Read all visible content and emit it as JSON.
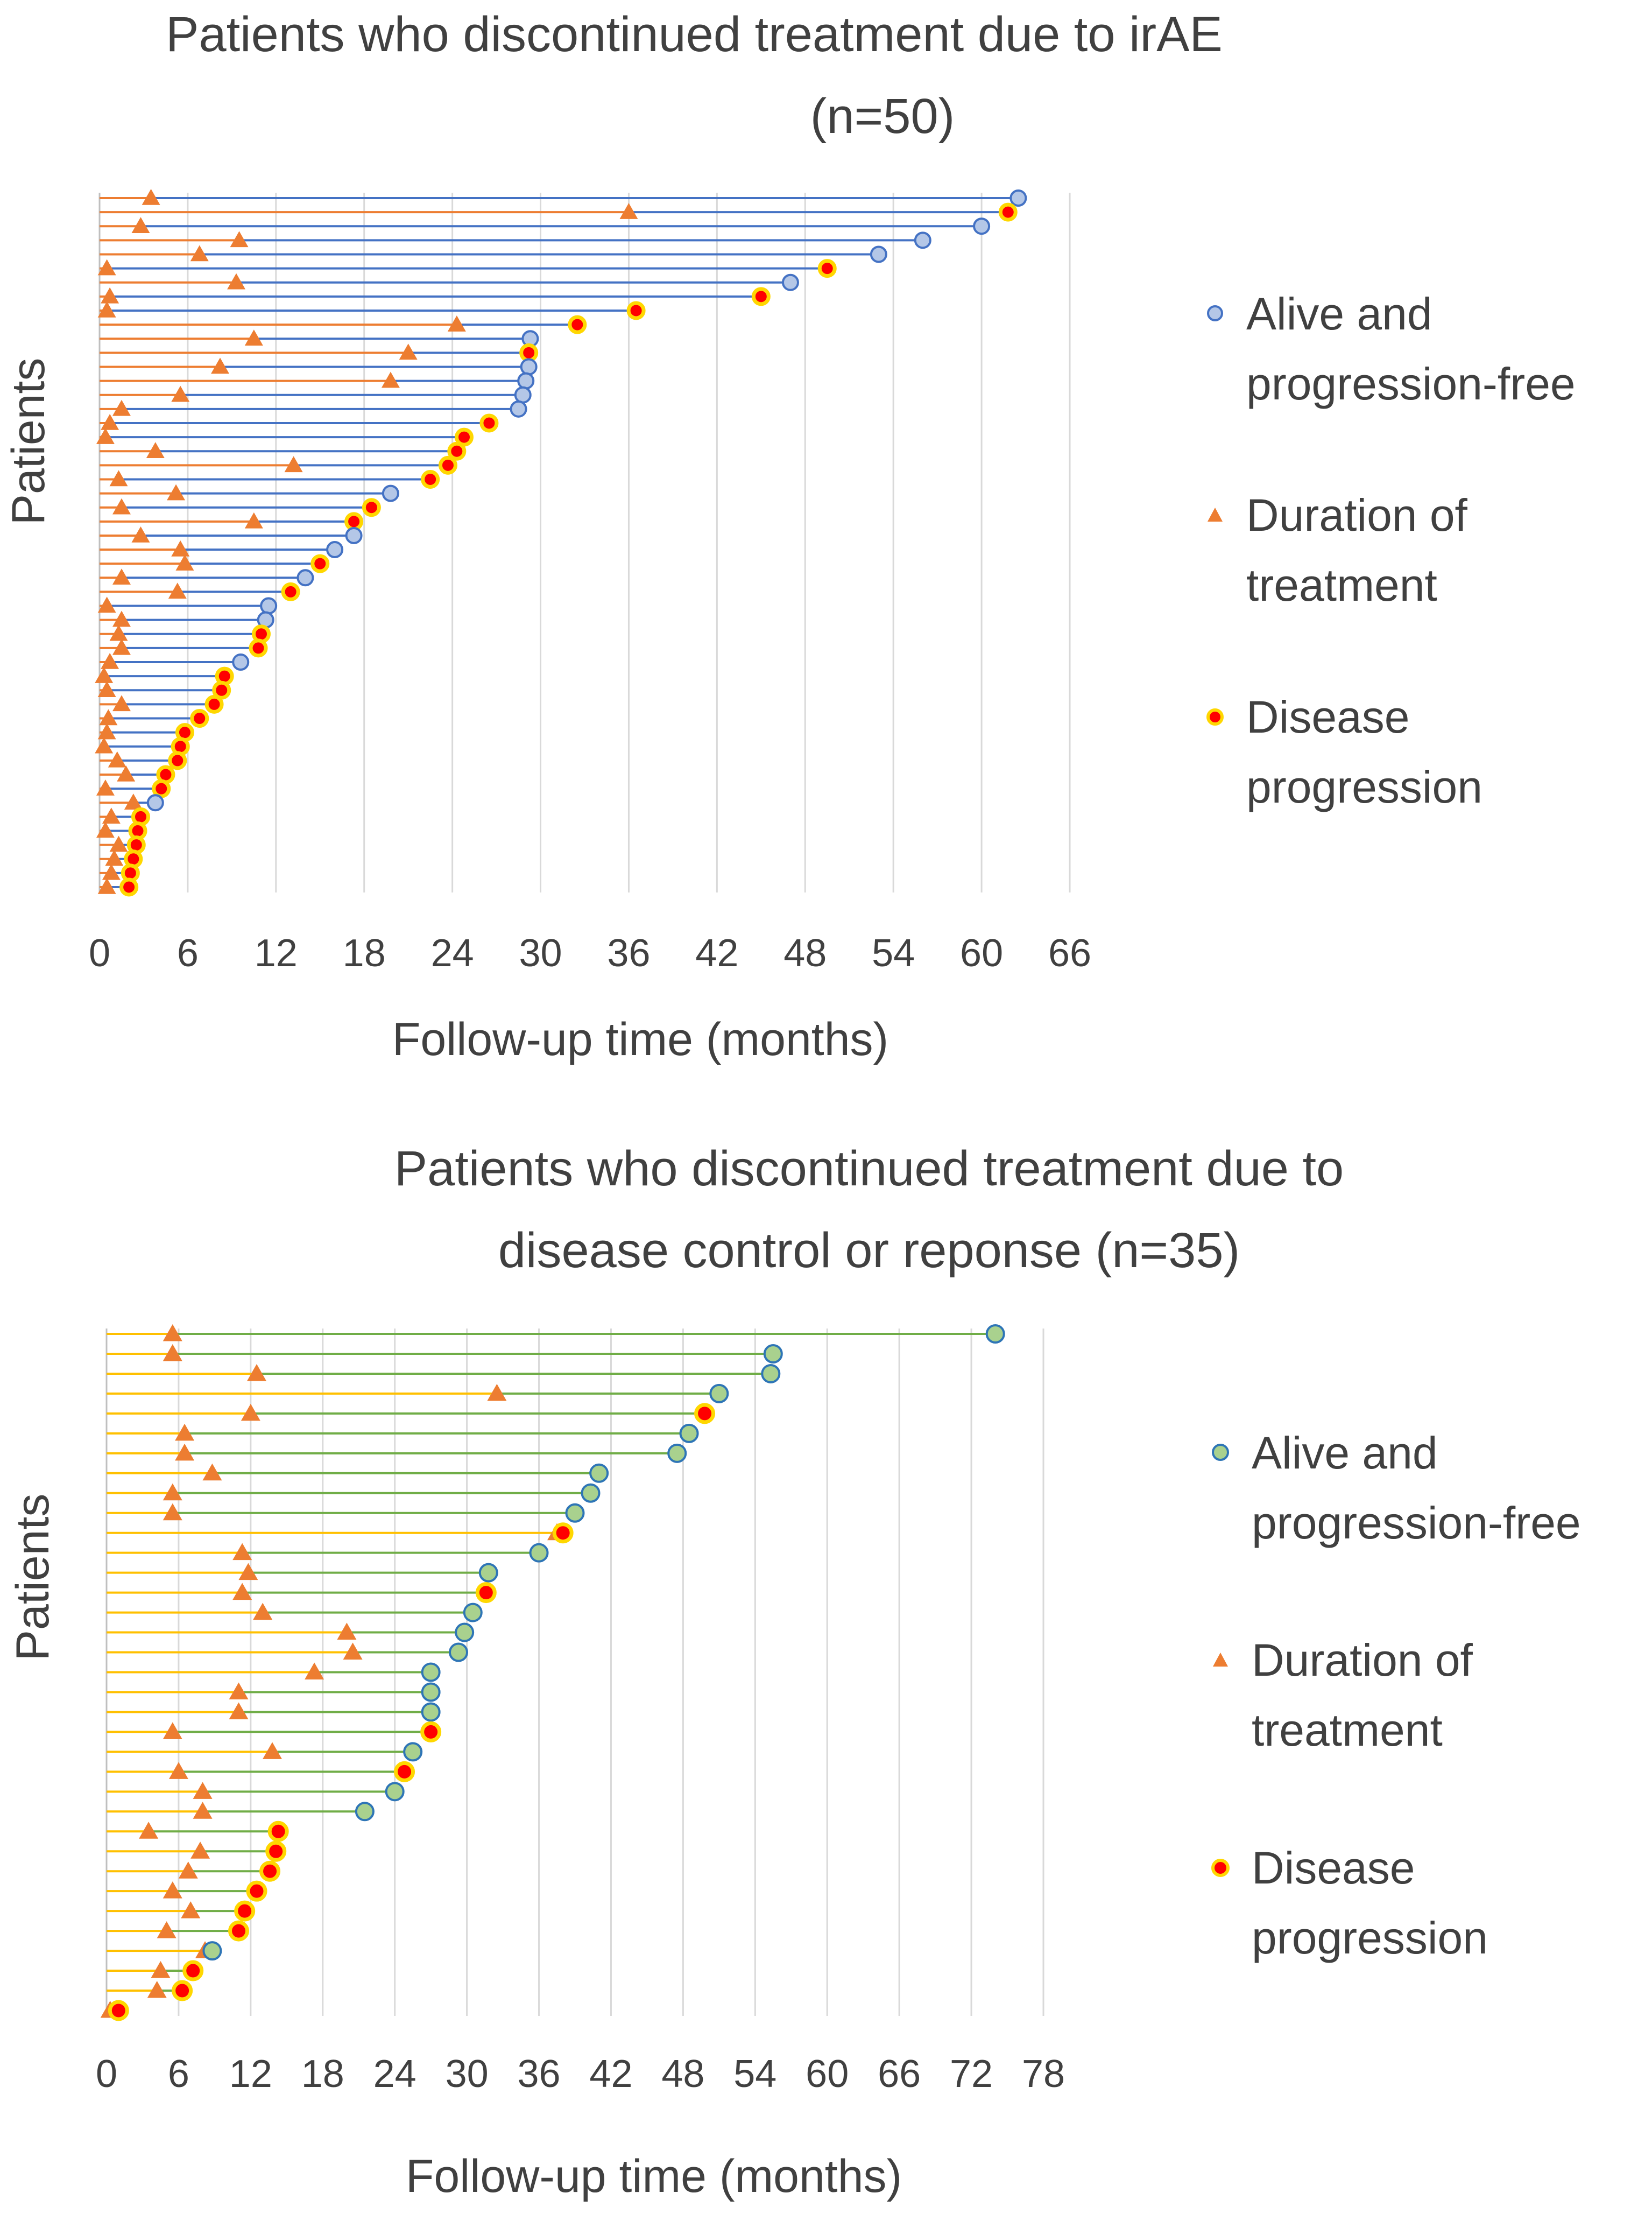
{
  "chart_data": [
    {
      "type": "swimmer",
      "title_lines": [
        "Patients who discontinued treatment due to irAE",
        "(n=50)"
      ],
      "xlabel": "Follow-up time (months)",
      "ylabel": "Patients",
      "xlim": [
        0,
        66
      ],
      "xticks": [
        "0",
        "6",
        "12",
        "18",
        "24",
        "30",
        "36",
        "42",
        "48",
        "54",
        "60",
        "66"
      ],
      "colors": {
        "follow_up_line": "#4472C4",
        "treatment_line": "#ED7D31",
        "alive_marker_fill": "#B4C7E7",
        "alive_marker_stroke": "#4472C4",
        "treatment_marker": "#ED7D31",
        "progression_fill": "#FF0000",
        "progression_stroke": "#FFD700"
      },
      "legend": [
        {
          "key": "alive",
          "lines": [
            "Alive and",
            "progression-free"
          ]
        },
        {
          "key": "treatment",
          "lines": [
            "Duration of",
            "treatment"
          ]
        },
        {
          "key": "progression",
          "lines": [
            "Disease",
            "progression"
          ]
        }
      ],
      "patients": [
        {
          "treatment": 3.5,
          "followup": 62.5,
          "outcome": "alive"
        },
        {
          "treatment": 36,
          "followup": 61.8,
          "outcome": "progression"
        },
        {
          "treatment": 2.8,
          "followup": 60,
          "outcome": "alive"
        },
        {
          "treatment": 9.5,
          "followup": 56,
          "outcome": "alive"
        },
        {
          "treatment": 6.8,
          "followup": 53,
          "outcome": "alive"
        },
        {
          "treatment": 0.5,
          "followup": 49.5,
          "outcome": "progression"
        },
        {
          "treatment": 9.3,
          "followup": 47,
          "outcome": "alive"
        },
        {
          "treatment": 0.7,
          "followup": 45,
          "outcome": "progression"
        },
        {
          "treatment": 0.5,
          "followup": 36.5,
          "outcome": "progression"
        },
        {
          "treatment": 24.3,
          "followup": 32.5,
          "outcome": "progression"
        },
        {
          "treatment": 10.5,
          "followup": 29.3,
          "outcome": "alive"
        },
        {
          "treatment": 21,
          "followup": 29.2,
          "outcome": "progression"
        },
        {
          "treatment": 8.2,
          "followup": 29.2,
          "outcome": "alive"
        },
        {
          "treatment": 19.8,
          "followup": 29,
          "outcome": "alive"
        },
        {
          "treatment": 5.5,
          "followup": 28.8,
          "outcome": "alive"
        },
        {
          "treatment": 1.5,
          "followup": 28.5,
          "outcome": "alive"
        },
        {
          "treatment": 0.7,
          "followup": 26.5,
          "outcome": "progression"
        },
        {
          "treatment": 0.4,
          "followup": 24.8,
          "outcome": "progression"
        },
        {
          "treatment": 3.8,
          "followup": 24.3,
          "outcome": "progression"
        },
        {
          "treatment": 13.2,
          "followup": 23.7,
          "outcome": "progression"
        },
        {
          "treatment": 1.3,
          "followup": 22.5,
          "outcome": "progression"
        },
        {
          "treatment": 5.2,
          "followup": 19.8,
          "outcome": "alive"
        },
        {
          "treatment": 1.5,
          "followup": 18.5,
          "outcome": "progression"
        },
        {
          "treatment": 10.5,
          "followup": 17.3,
          "outcome": "progression"
        },
        {
          "treatment": 2.8,
          "followup": 17.3,
          "outcome": "alive"
        },
        {
          "treatment": 5.5,
          "followup": 16,
          "outcome": "alive"
        },
        {
          "treatment": 5.8,
          "followup": 15,
          "outcome": "progression"
        },
        {
          "treatment": 1.5,
          "followup": 14,
          "outcome": "alive"
        },
        {
          "treatment": 5.3,
          "followup": 13,
          "outcome": "progression"
        },
        {
          "treatment": 0.5,
          "followup": 11.5,
          "outcome": "alive"
        },
        {
          "treatment": 1.5,
          "followup": 11.3,
          "outcome": "alive"
        },
        {
          "treatment": 1.3,
          "followup": 11,
          "outcome": "progression"
        },
        {
          "treatment": 1.5,
          "followup": 10.8,
          "outcome": "progression"
        },
        {
          "treatment": 0.7,
          "followup": 9.6,
          "outcome": "alive"
        },
        {
          "treatment": 0.3,
          "followup": 8.5,
          "outcome": "progression"
        },
        {
          "treatment": 0.5,
          "followup": 8.3,
          "outcome": "progression"
        },
        {
          "treatment": 1.5,
          "followup": 7.8,
          "outcome": "progression"
        },
        {
          "treatment": 0.6,
          "followup": 6.8,
          "outcome": "progression"
        },
        {
          "treatment": 0.5,
          "followup": 5.8,
          "outcome": "progression"
        },
        {
          "treatment": 0.3,
          "followup": 5.5,
          "outcome": "progression"
        },
        {
          "treatment": 1.2,
          "followup": 5.3,
          "outcome": "progression"
        },
        {
          "treatment": 1.8,
          "followup": 4.5,
          "outcome": "progression"
        },
        {
          "treatment": 0.4,
          "followup": 4.2,
          "outcome": "progression"
        },
        {
          "treatment": 2.3,
          "followup": 3.8,
          "outcome": "alive"
        },
        {
          "treatment": 0.8,
          "followup": 2.8,
          "outcome": "progression"
        },
        {
          "treatment": 0.4,
          "followup": 2.6,
          "outcome": "progression"
        },
        {
          "treatment": 1.3,
          "followup": 2.5,
          "outcome": "progression"
        },
        {
          "treatment": 1.0,
          "followup": 2.3,
          "outcome": "progression"
        },
        {
          "treatment": 0.8,
          "followup": 2.1,
          "outcome": "progression"
        },
        {
          "treatment": 0.5,
          "followup": 2.0,
          "outcome": "progression"
        }
      ]
    },
    {
      "type": "swimmer",
      "title_lines": [
        "Patients who discontinued treatment due to",
        "disease control or reponse (n=35)"
      ],
      "xlabel": "Follow-up time (months)",
      "ylabel": "Patients",
      "xlim": [
        0,
        78
      ],
      "xticks": [
        "0",
        "6",
        "12",
        "18",
        "24",
        "30",
        "36",
        "42",
        "48",
        "54",
        "60",
        "66",
        "72",
        "78"
      ],
      "colors": {
        "follow_up_line": "#70AD47",
        "treatment_line": "#FFC000",
        "alive_marker_fill": "#A9D18E",
        "alive_marker_stroke": "#2E75B6",
        "treatment_marker": "#ED7D31",
        "progression_fill": "#FF0000",
        "progression_stroke": "#FFD700"
      },
      "legend": [
        {
          "key": "alive",
          "lines": [
            "Alive and",
            "progression-free"
          ]
        },
        {
          "key": "treatment",
          "lines": [
            "Duration of",
            "treatment"
          ]
        },
        {
          "key": "progression",
          "lines": [
            "Disease",
            "progression"
          ]
        }
      ],
      "patients": [
        {
          "treatment": 5.5,
          "followup": 74,
          "outcome": "alive"
        },
        {
          "treatment": 5.5,
          "followup": 55.5,
          "outcome": "alive"
        },
        {
          "treatment": 12.5,
          "followup": 55.3,
          "outcome": "alive"
        },
        {
          "treatment": 32.5,
          "followup": 51,
          "outcome": "alive"
        },
        {
          "treatment": 12,
          "followup": 49.8,
          "outcome": "progression"
        },
        {
          "treatment": 6.5,
          "followup": 48.5,
          "outcome": "alive"
        },
        {
          "treatment": 6.5,
          "followup": 47.5,
          "outcome": "alive"
        },
        {
          "treatment": 8.8,
          "followup": 41,
          "outcome": "alive"
        },
        {
          "treatment": 5.5,
          "followup": 40.3,
          "outcome": "alive"
        },
        {
          "treatment": 5.5,
          "followup": 39,
          "outcome": "alive"
        },
        {
          "treatment": 37.5,
          "followup": 38,
          "outcome": "progression"
        },
        {
          "treatment": 11.3,
          "followup": 36,
          "outcome": "alive"
        },
        {
          "treatment": 11.8,
          "followup": 31.8,
          "outcome": "alive"
        },
        {
          "treatment": 11.3,
          "followup": 31.6,
          "outcome": "progression"
        },
        {
          "treatment": 13,
          "followup": 30.5,
          "outcome": "alive"
        },
        {
          "treatment": 20,
          "followup": 29.8,
          "outcome": "alive"
        },
        {
          "treatment": 20.5,
          "followup": 29.3,
          "outcome": "alive"
        },
        {
          "treatment": 17.3,
          "followup": 27,
          "outcome": "alive"
        },
        {
          "treatment": 11,
          "followup": 27,
          "outcome": "alive"
        },
        {
          "treatment": 11,
          "followup": 27,
          "outcome": "alive"
        },
        {
          "treatment": 5.5,
          "followup": 27,
          "outcome": "progression"
        },
        {
          "treatment": 13.8,
          "followup": 25.5,
          "outcome": "alive"
        },
        {
          "treatment": 6,
          "followup": 24.8,
          "outcome": "progression"
        },
        {
          "treatment": 8,
          "followup": 24,
          "outcome": "alive"
        },
        {
          "treatment": 8,
          "followup": 21.5,
          "outcome": "alive"
        },
        {
          "treatment": 3.5,
          "followup": 14.3,
          "outcome": "progression"
        },
        {
          "treatment": 7.8,
          "followup": 14.1,
          "outcome": "progression"
        },
        {
          "treatment": 6.8,
          "followup": 13.6,
          "outcome": "progression"
        },
        {
          "treatment": 5.5,
          "followup": 12.5,
          "outcome": "progression"
        },
        {
          "treatment": 7,
          "followup": 11.5,
          "outcome": "progression"
        },
        {
          "treatment": 5,
          "followup": 11,
          "outcome": "progression"
        },
        {
          "treatment": 8.2,
          "followup": 8.8,
          "outcome": "alive"
        },
        {
          "treatment": 4.5,
          "followup": 7.2,
          "outcome": "progression"
        },
        {
          "treatment": 4.2,
          "followup": 6.3,
          "outcome": "progression"
        },
        {
          "treatment": 0.3,
          "followup": 1.0,
          "outcome": "progression"
        }
      ]
    }
  ]
}
